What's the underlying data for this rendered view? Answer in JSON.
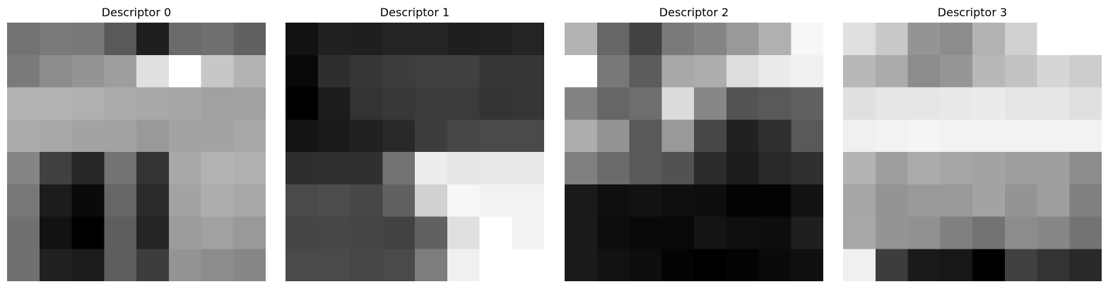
{
  "chart_data": [
    {
      "type": "heatmap",
      "title": "Descriptor 0",
      "colormap": "gray",
      "grid": false,
      "values": [
        [
          0.45,
          0.48,
          0.47,
          0.35,
          0.12,
          0.42,
          0.44,
          0.38
        ],
        [
          0.48,
          0.55,
          0.58,
          0.62,
          0.88,
          1.0,
          0.78,
          0.7
        ],
        [
          0.7,
          0.7,
          0.69,
          0.67,
          0.66,
          0.65,
          0.63,
          0.63
        ],
        [
          0.67,
          0.66,
          0.64,
          0.64,
          0.6,
          0.64,
          0.64,
          0.66
        ],
        [
          0.52,
          0.25,
          0.15,
          0.45,
          0.2,
          0.66,
          0.7,
          0.69
        ],
        [
          0.47,
          0.11,
          0.04,
          0.4,
          0.17,
          0.64,
          0.68,
          0.66
        ],
        [
          0.44,
          0.07,
          0.0,
          0.37,
          0.14,
          0.61,
          0.63,
          0.6
        ],
        [
          0.44,
          0.13,
          0.11,
          0.37,
          0.24,
          0.58,
          0.55,
          0.53
        ]
      ]
    },
    {
      "type": "heatmap",
      "title": "Descriptor 1",
      "colormap": "gray",
      "grid": false,
      "values": [
        [
          0.07,
          0.13,
          0.12,
          0.14,
          0.14,
          0.12,
          0.13,
          0.14
        ],
        [
          0.03,
          0.18,
          0.21,
          0.24,
          0.25,
          0.25,
          0.21,
          0.21
        ],
        [
          0.0,
          0.11,
          0.2,
          0.22,
          0.23,
          0.23,
          0.2,
          0.21
        ],
        [
          0.08,
          0.1,
          0.13,
          0.16,
          0.24,
          0.28,
          0.29,
          0.29
        ],
        [
          0.18,
          0.19,
          0.19,
          0.45,
          0.93,
          0.9,
          0.91,
          0.91
        ],
        [
          0.29,
          0.3,
          0.28,
          0.38,
          0.82,
          0.97,
          0.95,
          0.95
        ],
        [
          0.27,
          0.28,
          0.27,
          0.26,
          0.38,
          0.88,
          1.0,
          0.95
        ],
        [
          0.29,
          0.29,
          0.28,
          0.29,
          0.49,
          0.94,
          1.0,
          1.0
        ]
      ]
    },
    {
      "type": "heatmap",
      "title": "Descriptor 2",
      "colormap": "gray",
      "grid": false,
      "values": [
        [
          0.7,
          0.4,
          0.26,
          0.48,
          0.52,
          0.6,
          0.69,
          0.97
        ],
        [
          1.0,
          0.47,
          0.36,
          0.66,
          0.68,
          0.87,
          0.92,
          0.94
        ],
        [
          0.51,
          0.4,
          0.43,
          0.86,
          0.53,
          0.33,
          0.35,
          0.38
        ],
        [
          0.68,
          0.58,
          0.35,
          0.6,
          0.28,
          0.13,
          0.19,
          0.35
        ],
        [
          0.5,
          0.42,
          0.35,
          0.32,
          0.17,
          0.11,
          0.16,
          0.19
        ],
        [
          0.1,
          0.06,
          0.07,
          0.06,
          0.05,
          0.01,
          0.01,
          0.07
        ],
        [
          0.1,
          0.05,
          0.03,
          0.03,
          0.08,
          0.06,
          0.05,
          0.12
        ],
        [
          0.1,
          0.07,
          0.05,
          0.01,
          0.0,
          0.01,
          0.04,
          0.06
        ]
      ]
    },
    {
      "type": "heatmap",
      "title": "Descriptor 3",
      "colormap": "gray",
      "grid": false,
      "values": [
        [
          0.88,
          0.79,
          0.58,
          0.55,
          0.7,
          0.82,
          1.0,
          1.0
        ],
        [
          0.72,
          0.67,
          0.55,
          0.59,
          0.72,
          0.76,
          0.84,
          0.8
        ],
        [
          0.88,
          0.9,
          0.9,
          0.91,
          0.92,
          0.9,
          0.9,
          0.88
        ],
        [
          0.94,
          0.95,
          0.96,
          0.95,
          0.95,
          0.95,
          0.95,
          0.95
        ],
        [
          0.7,
          0.62,
          0.67,
          0.65,
          0.64,
          0.62,
          0.62,
          0.55
        ],
        [
          0.65,
          0.58,
          0.6,
          0.6,
          0.64,
          0.58,
          0.62,
          0.5
        ],
        [
          0.66,
          0.58,
          0.57,
          0.5,
          0.45,
          0.55,
          0.53,
          0.45
        ],
        [
          0.94,
          0.24,
          0.1,
          0.09,
          0.0,
          0.25,
          0.2,
          0.16
        ]
      ]
    }
  ]
}
